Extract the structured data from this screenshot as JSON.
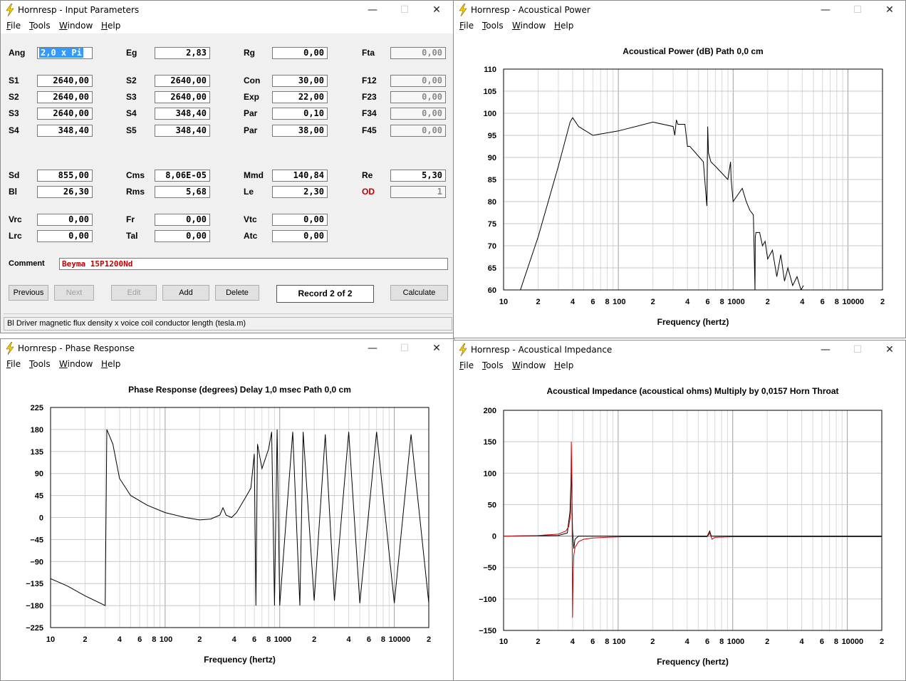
{
  "menu": [
    "File",
    "Tools",
    "Window",
    "Help"
  ],
  "input_window": {
    "title": "Hornresp - Input Parameters",
    "params": [
      {
        "label": "Ang",
        "value": "2,0 x Pi",
        "selected": true
      },
      {
        "label": "Eg",
        "value": "2,83"
      },
      {
        "label": "Rg",
        "value": "0,00"
      },
      {
        "label": "Fta",
        "value": "0,00",
        "disabled": true
      },
      {
        "label": "S1",
        "value": "2640,00"
      },
      {
        "label": "S2",
        "value": "2640,00"
      },
      {
        "label": "Con",
        "value": "30,00"
      },
      {
        "label": "F12",
        "value": "0,00",
        "disabled": true
      },
      {
        "label": "S2",
        "value": "2640,00"
      },
      {
        "label": "S3",
        "value": "2640,00"
      },
      {
        "label": "Exp",
        "value": "22,00"
      },
      {
        "label": "F23",
        "value": "0,00",
        "disabled": true
      },
      {
        "label": "S3",
        "value": "2640,00"
      },
      {
        "label": "S4",
        "value": "348,40"
      },
      {
        "label": "Par",
        "value": "0,10"
      },
      {
        "label": "F34",
        "value": "0,00",
        "disabled": true
      },
      {
        "label": "S4",
        "value": "348,40"
      },
      {
        "label": "S5",
        "value": "348,40"
      },
      {
        "label": "Par",
        "value": "38,00"
      },
      {
        "label": "F45",
        "value": "0,00",
        "disabled": true
      },
      {
        "label": "Sd",
        "value": "855,00"
      },
      {
        "label": "Cms",
        "value": "8,06E-05"
      },
      {
        "label": "Mmd",
        "value": "140,84"
      },
      {
        "label": "Re",
        "value": "5,30"
      },
      {
        "label": "Bl",
        "value": "26,30"
      },
      {
        "label": "Rms",
        "value": "5,68"
      },
      {
        "label": "Le",
        "value": "2,30"
      },
      {
        "label": "OD",
        "value": "1",
        "red": true,
        "disabled": true
      },
      {
        "label": "Vrc",
        "value": "0,00"
      },
      {
        "label": "Fr",
        "value": "0,00"
      },
      {
        "label": "Vtc",
        "value": "0,00"
      },
      {
        "label": "Lrc",
        "value": "0,00"
      },
      {
        "label": "Tal",
        "value": "0,00"
      },
      {
        "label": "Atc",
        "value": "0,00"
      }
    ],
    "comment_label": "Comment",
    "comment_value": "Beyma 15P1200Nd",
    "buttons": {
      "previous": "Previous",
      "next": "Next",
      "edit": "Edit",
      "add": "Add",
      "delete": "Delete",
      "calculate": "Calculate"
    },
    "record": "Record 2 of 2",
    "status": "Bl   Driver magnetic flux density x voice coil conductor length  (tesla.m)"
  },
  "power_window": {
    "title": "Hornresp - Acoustical Power",
    "chart_title": "Acoustical Power (dB)    Path 0,0 cm",
    "xlabel": "Frequency (hertz)",
    "xticks": [
      "10",
      "2",
      "4",
      "6",
      "8",
      "100",
      "2",
      "4",
      "6",
      "8",
      "1000",
      "2",
      "4",
      "6",
      "8",
      "10000",
      "2"
    ],
    "yticks": [
      "110",
      "105",
      "100",
      "95",
      "90",
      "85",
      "80",
      "75",
      "70",
      "65",
      "60"
    ]
  },
  "phase_window": {
    "title": "Hornresp - Phase Response",
    "chart_title": "Phase Response (degrees)    Delay 1,0 msec    Path 0,0 cm",
    "xlabel": "Frequency (hertz)",
    "xticks": [
      "10",
      "2",
      "4",
      "6",
      "8",
      "100",
      "2",
      "4",
      "6",
      "8",
      "1000",
      "2",
      "4",
      "6",
      "8",
      "10000",
      "2"
    ],
    "yticks": [
      "225",
      "180",
      "135",
      "90",
      "45",
      "0",
      "−45",
      "−90",
      "−135",
      "−180",
      "−225"
    ]
  },
  "impedance_window": {
    "title": "Hornresp - Acoustical Impedance",
    "chart_title": "Acoustical Impedance (acoustical ohms)    Multiply by 0,0157    Horn Throat",
    "xlabel": "Frequency (hertz)",
    "xticks": [
      "10",
      "2",
      "4",
      "6",
      "8",
      "100",
      "2",
      "4",
      "6",
      "8",
      "1000",
      "2",
      "4",
      "6",
      "8",
      "10000",
      "2"
    ],
    "yticks": [
      "200",
      "150",
      "100",
      "50",
      "0",
      "−50",
      "−100",
      "−150"
    ]
  },
  "chart_data": [
    {
      "type": "line",
      "title": "Acoustical Power (dB)    Path 0,0 cm",
      "xlabel": "Frequency (hertz)",
      "ylabel": "",
      "xscale": "log",
      "xlim": [
        10,
        20000
      ],
      "ylim": [
        60,
        110
      ],
      "grid": true,
      "series": [
        {
          "color": "#000000",
          "x": [
            14,
            20,
            30,
            38,
            40,
            45,
            60,
            100,
            200,
            300,
            310,
            320,
            330,
            380,
            400,
            420,
            550,
            590,
            600,
            610,
            640,
            700,
            900,
            950,
            960,
            1000,
            1200,
            1300,
            1400,
            1500,
            1550,
            1560,
            1580,
            1700,
            1800,
            1900,
            2000,
            2200,
            2400,
            2600,
            2800,
            3000,
            3300,
            3600,
            3900,
            4100
          ],
          "y": [
            60,
            72,
            88,
            98,
            99,
            97,
            95,
            96,
            98,
            97,
            95,
            98.5,
            97.5,
            97.5,
            92.5,
            92.5,
            89,
            79,
            97,
            91,
            89,
            88,
            85,
            89,
            85,
            80,
            83,
            80,
            78,
            77,
            60,
            72,
            73,
            73,
            70,
            71,
            67,
            69,
            63,
            68,
            62,
            65,
            61,
            63,
            60,
            61
          ]
        }
      ]
    },
    {
      "type": "line",
      "title": "Phase Response (degrees)    Delay 1,0 msec    Path 0,0 cm",
      "xlabel": "Frequency (hertz)",
      "ylabel": "",
      "xscale": "log",
      "xlim": [
        10,
        20000
      ],
      "ylim": [
        -225,
        225
      ],
      "grid": true,
      "series": [
        {
          "color": "#000000",
          "x": [
            10,
            14,
            20,
            30,
            31,
            35,
            40,
            50,
            70,
            100,
            150,
            200,
            250,
            300,
            320,
            340,
            380,
            420,
            500,
            560,
            600,
            620,
            640,
            700,
            800,
            850,
            900,
            950,
            1000,
            1300,
            1500,
            1600,
            2000,
            2500,
            3000,
            4000,
            5000,
            7000,
            10000,
            14000,
            20000
          ],
          "y": [
            -125,
            -140,
            -160,
            -180,
            180,
            150,
            80,
            45,
            25,
            10,
            0,
            -5,
            -3,
            5,
            20,
            5,
            0,
            10,
            40,
            60,
            130,
            -180,
            150,
            100,
            140,
            175,
            -180,
            180,
            -180,
            175,
            -180,
            175,
            -170,
            170,
            -170,
            175,
            -175,
            175,
            -175,
            170,
            -175
          ]
        }
      ]
    },
    {
      "type": "line",
      "title": "Acoustical Impedance (acoustical ohms)    Multiply by 0,0157    Horn Throat",
      "xlabel": "Frequency (hertz)",
      "ylabel": "",
      "xscale": "log",
      "xlim": [
        10,
        20000
      ],
      "ylim": [
        -150,
        200
      ],
      "grid": true,
      "series": [
        {
          "color": "#000000",
          "x": [
            10,
            30,
            36,
            38,
            39,
            40,
            41,
            42,
            45,
            60,
            100,
            200,
            400,
            600,
            630,
            650,
            700,
            1000,
            2000,
            5000,
            10000,
            20000
          ],
          "y": [
            0,
            1,
            5,
            40,
            105,
            10,
            -20,
            -5,
            0,
            0,
            0,
            0,
            0,
            0,
            8,
            0,
            0,
            0,
            0,
            0,
            0,
            0
          ]
        },
        {
          "color": "#cc0000",
          "x": [
            10,
            20,
            30,
            35,
            37,
            38.5,
            39,
            39.5,
            40,
            40.5,
            41,
            42,
            45,
            50,
            60,
            80,
            110,
            400,
            600,
            630,
            660,
            700,
            1000,
            2000,
            5000,
            10000,
            20000
          ],
          "y": [
            0,
            1,
            3,
            8,
            15,
            35,
            150,
            80,
            -130,
            -60,
            -30,
            -18,
            -9,
            -5,
            -3,
            -2,
            -1,
            -1,
            -1,
            5,
            -5,
            -2,
            -1,
            -1,
            -1,
            -1,
            -1
          ]
        }
      ]
    }
  ]
}
